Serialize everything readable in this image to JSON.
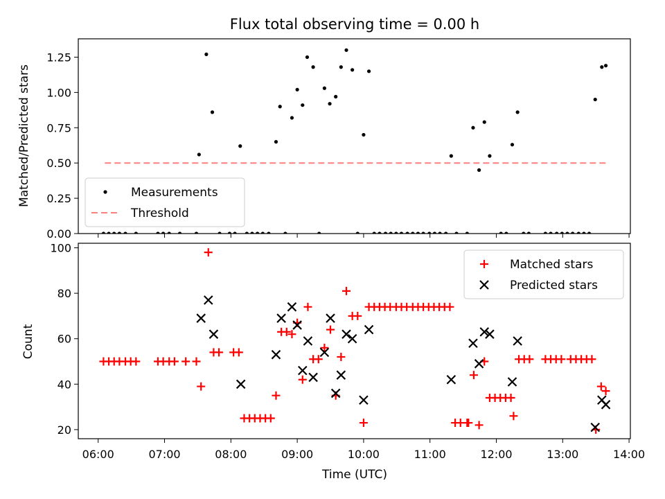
{
  "title": "Flux total observing time = 0.00 h",
  "chart_data": [
    {
      "type": "scatter",
      "ylabel": "Matched/Predicted stars",
      "xlim": [
        5.7,
        14.02
      ],
      "ylim": [
        0,
        1.38
      ],
      "yticks": [
        0.0,
        0.25,
        0.5,
        0.75,
        1.0,
        1.25
      ],
      "ytick_labels": [
        "0.00",
        "0.25",
        "0.50",
        "0.75",
        "1.00",
        "1.25"
      ],
      "xticks": [
        6,
        7,
        8,
        9,
        10,
        11,
        12,
        13,
        14
      ],
      "show_xtick_labels": false,
      "legend": {
        "location": "lower-left",
        "entries": [
          {
            "label": "Measurements",
            "marker": "dot",
            "color": "#000000"
          },
          {
            "label": "Threshold",
            "marker": "dashed-line",
            "color": "#ff7f7f"
          }
        ]
      },
      "threshold": {
        "value": 0.5,
        "x_from": 6.1,
        "x_to": 13.65,
        "color": "#ff7f7f"
      },
      "series": [
        {
          "name": "Measurements",
          "color": "#000000",
          "x": [
            7.52,
            7.63,
            7.72,
            8.14,
            8.68,
            8.74,
            8.92,
            9.0,
            9.08,
            9.15,
            9.24,
            9.41,
            9.49,
            9.58,
            9.66,
            9.74,
            9.83,
            10.0,
            10.08,
            11.32,
            11.65,
            11.74,
            11.82,
            11.9,
            12.24,
            12.32,
            13.49,
            13.59,
            13.65,
            6.08,
            6.16,
            6.24,
            6.32,
            6.41,
            6.57,
            6.9,
            6.98,
            7.07,
            7.23,
            7.48,
            7.83,
            7.98,
            8.06,
            8.24,
            8.32,
            8.4,
            8.48,
            8.57,
            8.82,
            9.33,
            9.91,
            10.16,
            10.24,
            10.33,
            10.41,
            10.49,
            10.57,
            10.66,
            10.74,
            10.82,
            10.9,
            10.99,
            11.07,
            11.15,
            11.24,
            11.4,
            11.56,
            12.07,
            12.15,
            12.41,
            12.49,
            12.74,
            12.82,
            12.91,
            12.99,
            13.07,
            13.15,
            13.24,
            13.32,
            13.4
          ],
          "y": [
            0.56,
            1.27,
            0.86,
            0.62,
            0.65,
            0.9,
            0.82,
            1.02,
            0.91,
            1.25,
            1.18,
            1.03,
            0.92,
            0.97,
            1.18,
            1.3,
            1.16,
            0.7,
            1.15,
            0.55,
            0.75,
            0.45,
            0.79,
            0.55,
            0.63,
            0.86,
            0.95,
            1.18,
            1.19,
            0,
            0,
            0,
            0,
            0,
            0,
            0,
            0,
            0,
            0,
            0,
            0,
            0,
            0,
            0,
            0,
            0,
            0,
            0,
            0,
            0,
            0,
            0,
            0,
            0,
            0,
            0,
            0,
            0,
            0,
            0,
            0,
            0,
            0,
            0,
            0,
            0,
            0,
            0,
            0,
            0,
            0,
            0,
            0,
            0,
            0,
            0,
            0,
            0,
            0,
            0
          ]
        }
      ]
    },
    {
      "type": "scatter",
      "xlabel": "Time (UTC)",
      "ylabel": "Count",
      "xlim": [
        5.7,
        14.02
      ],
      "ylim": [
        16,
        102
      ],
      "yticks": [
        20,
        40,
        60,
        80,
        100
      ],
      "ytick_labels": [
        "20",
        "40",
        "60",
        "80",
        "100"
      ],
      "xticks": [
        6,
        7,
        8,
        9,
        10,
        11,
        12,
        13,
        14
      ],
      "xtick_labels": [
        "06:00",
        "07:00",
        "08:00",
        "09:00",
        "10:00",
        "11:00",
        "12:00",
        "13:00",
        "14:00"
      ],
      "legend": {
        "location": "upper-right",
        "entries": [
          {
            "label": "Matched stars",
            "marker": "plus",
            "color": "#ff0000"
          },
          {
            "label": "Predicted stars",
            "marker": "x",
            "color": "#000000"
          }
        ]
      },
      "series": [
        {
          "name": "Matched stars",
          "marker": "plus",
          "color": "#ff0000",
          "x": [
            6.08,
            6.16,
            6.24,
            6.32,
            6.41,
            6.49,
            6.57,
            6.9,
            6.98,
            7.07,
            7.15,
            7.32,
            7.48,
            7.55,
            7.66,
            7.74,
            7.82,
            8.04,
            8.12,
            8.2,
            8.28,
            8.36,
            8.44,
            8.52,
            8.6,
            8.68,
            8.76,
            8.84,
            8.92,
            9.0,
            9.08,
            9.16,
            9.24,
            9.32,
            9.41,
            9.5,
            9.58,
            9.66,
            9.74,
            9.83,
            9.91,
            10.0,
            10.08,
            10.16,
            10.24,
            10.32,
            10.4,
            10.49,
            10.57,
            10.65,
            10.74,
            10.82,
            10.9,
            10.98,
            11.06,
            11.14,
            11.22,
            11.3,
            11.38,
            11.46,
            11.56,
            11.58,
            11.66,
            11.74,
            11.82,
            11.9,
            11.98,
            12.06,
            12.14,
            12.22,
            12.26,
            12.34,
            12.42,
            12.5,
            12.74,
            12.82,
            12.9,
            12.98,
            13.12,
            13.2,
            13.28,
            13.36,
            13.44,
            13.5,
            13.58,
            13.65
          ],
          "y": [
            50,
            50,
            50,
            50,
            50,
            50,
            50,
            50,
            50,
            50,
            50,
            50,
            50,
            39,
            98,
            54,
            54,
            54,
            54,
            25,
            25,
            25,
            25,
            25,
            25,
            35,
            63,
            63,
            62,
            67,
            42,
            74,
            51,
            51,
            56,
            64,
            35,
            52,
            81,
            70,
            70,
            23,
            74,
            74,
            74,
            74,
            74,
            74,
            74,
            74,
            74,
            74,
            74,
            74,
            74,
            74,
            74,
            74,
            23,
            23,
            23,
            23,
            44,
            22,
            50,
            34,
            34,
            34,
            34,
            34,
            26,
            51,
            51,
            51,
            51,
            51,
            51,
            51,
            51,
            51,
            51,
            51,
            51,
            20,
            39,
            37
          ]
        },
        {
          "name": "Predicted stars",
          "marker": "x",
          "color": "#000000",
          "x": [
            7.55,
            7.66,
            7.74,
            8.15,
            8.68,
            8.76,
            8.92,
            9.0,
            9.08,
            9.16,
            9.24,
            9.41,
            9.5,
            9.58,
            9.66,
            9.74,
            9.83,
            10.0,
            10.08,
            11.32,
            11.65,
            11.74,
            11.82,
            11.9,
            12.24,
            12.32,
            13.49,
            13.59,
            13.65
          ],
          "y": [
            69,
            77,
            62,
            40,
            53,
            69,
            74,
            66,
            46,
            59,
            43,
            54,
            69,
            36,
            44,
            62,
            60,
            33,
            64,
            42,
            58,
            49,
            63,
            62,
            41,
            59,
            21,
            33,
            31
          ]
        }
      ]
    }
  ]
}
